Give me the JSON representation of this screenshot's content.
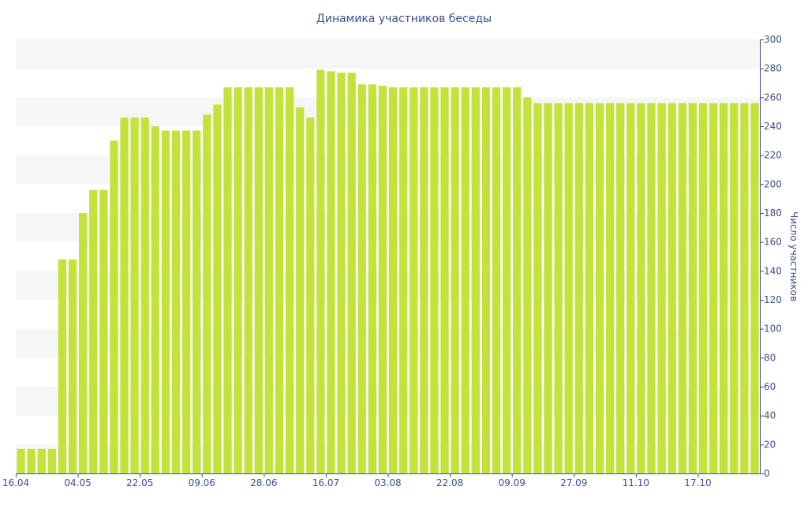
{
  "chart_data": {
    "type": "bar",
    "title": "Динамика участников беседы",
    "ylabel": "Число участников",
    "ylim": [
      0,
      300
    ],
    "yticks": [
      0,
      20,
      40,
      60,
      80,
      100,
      120,
      140,
      160,
      180,
      200,
      220,
      240,
      260,
      280,
      300
    ],
    "xtick_labels": [
      {
        "index": 0,
        "label": "16.04"
      },
      {
        "index": 6,
        "label": "04.05"
      },
      {
        "index": 12,
        "label": "22.05"
      },
      {
        "index": 18,
        "label": "09.06"
      },
      {
        "index": 24,
        "label": "28.06"
      },
      {
        "index": 30,
        "label": "16.07"
      },
      {
        "index": 36,
        "label": "03.08"
      },
      {
        "index": 42,
        "label": "22.08"
      },
      {
        "index": 48,
        "label": "09.09"
      },
      {
        "index": 54,
        "label": "27.09"
      },
      {
        "index": 60,
        "label": "11.10"
      },
      {
        "index": 66,
        "label": "17.10"
      }
    ],
    "values": [
      17,
      17,
      17,
      17,
      148,
      148,
      180,
      196,
      196,
      230,
      246,
      246,
      246,
      240,
      237,
      237,
      237,
      237,
      248,
      255,
      267,
      267,
      267,
      267,
      267,
      267,
      267,
      253,
      246,
      279,
      278,
      277,
      277,
      269,
      269,
      268,
      267,
      267,
      267,
      267,
      267,
      267,
      267,
      267,
      267,
      267,
      267,
      267,
      267,
      260,
      256,
      256,
      256,
      256,
      256,
      256,
      256,
      256,
      256,
      256,
      256,
      256,
      256,
      256,
      256,
      256,
      256,
      256,
      256,
      256,
      256,
      256
    ],
    "colors": {
      "bar": "#c3e23a",
      "axis": "#3b4f8f",
      "band": "#f6f6f6"
    },
    "grid": "alternating bands",
    "yaxis_side": "right"
  }
}
